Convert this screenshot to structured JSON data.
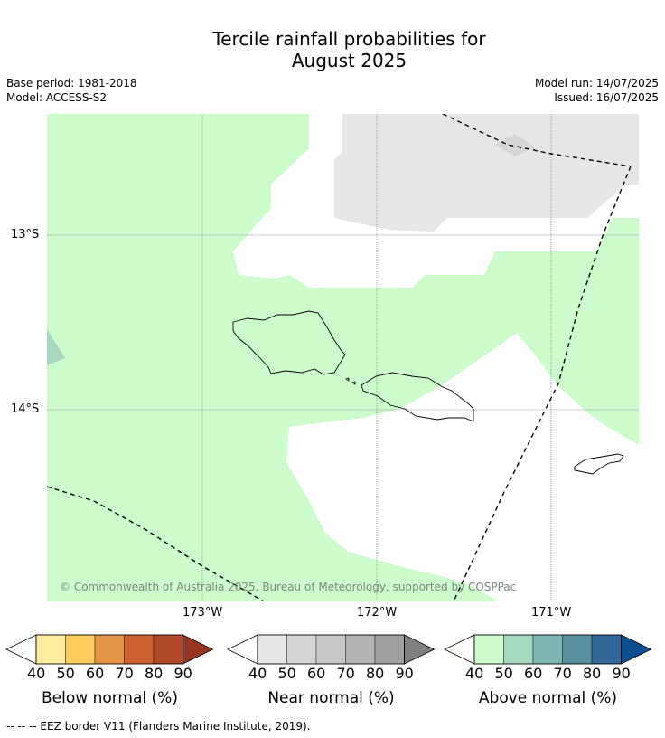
{
  "header": {
    "title_line1": "Tercile rainfall probabilities for",
    "title_line2": "August 2025",
    "base_period": "Base period: 1981-2018",
    "model": "Model: ACCESS-S2",
    "model_run": "Model run: 14/07/2025",
    "issued": "Issued: 16/07/2025"
  },
  "map": {
    "lat_labels": [
      "13°S",
      "14°S"
    ],
    "lon_labels": [
      "173°W",
      "172°W",
      "171°W"
    ],
    "copyright": "© Commonwealth of Australia 2025, Bureau of Meteorology, supported by COSPPac",
    "colors": {
      "above_40_50": "#ccfccc",
      "near_40_50": "#e6e6e6",
      "above_50_60": "#a6d9bf",
      "land_outline": "#000000",
      "eez_line": "#000000"
    }
  },
  "legend": {
    "ticks": [
      "40",
      "50",
      "60",
      "70",
      "80",
      "90"
    ],
    "below": {
      "label": "Below normal (%)",
      "colors": [
        "#ffffff",
        "#ffeda0",
        "#fecc5c",
        "#e39444",
        "#cf6032",
        "#b14a28",
        "#963522"
      ]
    },
    "near": {
      "label": "Near normal (%)",
      "colors": [
        "#ffffff",
        "#e6e6e6",
        "#d5d5d5",
        "#c8c8c8",
        "#b4b4b4",
        "#a0a0a0",
        "#808080"
      ]
    },
    "above": {
      "label": "Above normal (%)",
      "colors": [
        "#ffffff",
        "#ccfccc",
        "#a6d9bf",
        "#80b5b3",
        "#5a91a1",
        "#336699",
        "#0e4f8f"
      ]
    }
  },
  "footer": {
    "eez_note": "--  --  -- EEZ border V11 (Flanders Marine Institute, 2019)."
  }
}
